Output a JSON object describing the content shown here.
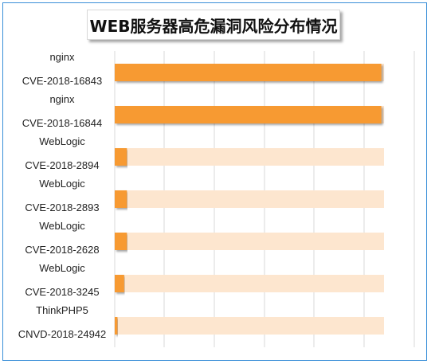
{
  "title": "WEB服务器高危漏洞风险分布情况",
  "colors": {
    "bar": "#f79a32",
    "track": "#fde6cf",
    "grid": "#d9d9d9",
    "frame": "#3a8fd8"
  },
  "chart_data": {
    "type": "bar",
    "orientation": "horizontal",
    "title": "WEB服务器高危漏洞风险分布情况",
    "xlabel": "",
    "ylabel": "",
    "xlim": [
      0,
      100
    ],
    "grid": true,
    "legend": "none",
    "categories": [
      {
        "name": "nginx",
        "cve": "CVE-2018-16843"
      },
      {
        "name": "nginx",
        "cve": "CVE-2018-16844"
      },
      {
        "name": "WebLogic",
        "cve": "CVE-2018-2894"
      },
      {
        "name": "WebLogic",
        "cve": "CVE-2018-2893"
      },
      {
        "name": "WebLogic",
        "cve": "CVE-2018-2628"
      },
      {
        "name": "WebLogic",
        "cve": "CVE-2018-3245"
      },
      {
        "name": "ThinkPHP5",
        "cve": "CNVD-2018-24942"
      }
    ],
    "values": [
      99,
      99,
      4.5,
      4.5,
      4.5,
      3.5,
      1
    ]
  }
}
